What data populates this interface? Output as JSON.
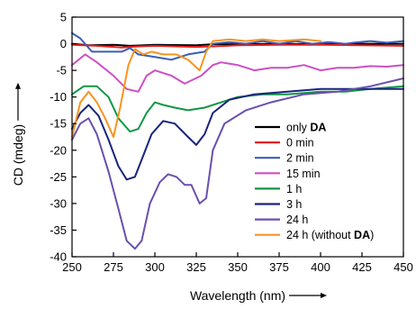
{
  "chart_data": {
    "type": "line",
    "title": "",
    "xlabel": "Wavelength (nm)",
    "ylabel": "CD (mdeg)",
    "xlim": [
      250,
      450
    ],
    "ylim": [
      -40,
      5
    ],
    "grid": false,
    "legend_position": "bottom-right",
    "x_ticks": [
      250,
      275,
      300,
      325,
      350,
      375,
      400,
      425,
      450
    ],
    "y_ticks": [
      5,
      0,
      -5,
      -10,
      -15,
      -20,
      -25,
      -30,
      -35,
      -40
    ],
    "series": [
      {
        "name": "only DA",
        "label_plain": "only ",
        "label_bold": "DA",
        "color": "#000000",
        "points": [
          [
            250,
            0
          ],
          [
            260,
            -0.3
          ],
          [
            275,
            -0.2
          ],
          [
            285,
            -0.4
          ],
          [
            300,
            -0.2
          ],
          [
            325,
            -0.3
          ],
          [
            335,
            -0.1
          ],
          [
            350,
            -0.1
          ],
          [
            375,
            0
          ],
          [
            400,
            -0.1
          ],
          [
            425,
            0
          ],
          [
            450,
            0
          ]
        ]
      },
      {
        "name": "0 min",
        "label_plain": "0 min",
        "label_bold": "",
        "color": "#e8211f",
        "points": [
          [
            250,
            -0.2
          ],
          [
            265,
            -0.4
          ],
          [
            280,
            -0.7
          ],
          [
            290,
            -0.5
          ],
          [
            300,
            -0.4
          ],
          [
            325,
            -0.6
          ],
          [
            335,
            -0.5
          ],
          [
            350,
            -0.3
          ],
          [
            375,
            -0.2
          ],
          [
            400,
            -0.2
          ],
          [
            425,
            -0.3
          ],
          [
            450,
            -0.4
          ]
        ]
      },
      {
        "name": "2 min",
        "label_plain": "2 min",
        "label_bold": "",
        "color": "#3a5cb8",
        "points": [
          [
            250,
            2
          ],
          [
            255,
            1
          ],
          [
            262,
            -1.5
          ],
          [
            270,
            -1.5
          ],
          [
            280,
            -1.5
          ],
          [
            285,
            -0.8
          ],
          [
            290,
            -2
          ],
          [
            300,
            -2.5
          ],
          [
            310,
            -3
          ],
          [
            320,
            -2
          ],
          [
            330,
            -1.5
          ],
          [
            335,
            0
          ],
          [
            345,
            0.3
          ],
          [
            355,
            0
          ],
          [
            365,
            0.5
          ],
          [
            375,
            0
          ],
          [
            385,
            0.5
          ],
          [
            395,
            0
          ],
          [
            405,
            0.3
          ],
          [
            415,
            0
          ],
          [
            420,
            0.2
          ],
          [
            430,
            0.5
          ],
          [
            440,
            0.2
          ],
          [
            450,
            0.5
          ]
        ]
      },
      {
        "name": "15 min",
        "label_plain": "15 min",
        "label_bold": "",
        "color": "#cc4fc4",
        "points": [
          [
            250,
            -4
          ],
          [
            258,
            -2
          ],
          [
            265,
            -3.5
          ],
          [
            275,
            -6
          ],
          [
            283,
            -8.5
          ],
          [
            290,
            -9
          ],
          [
            295,
            -6
          ],
          [
            300,
            -5
          ],
          [
            305,
            -5.5
          ],
          [
            310,
            -6
          ],
          [
            318,
            -7.5
          ],
          [
            328,
            -6
          ],
          [
            335,
            -4
          ],
          [
            340,
            -3.5
          ],
          [
            350,
            -4
          ],
          [
            360,
            -5
          ],
          [
            370,
            -4.5
          ],
          [
            380,
            -4.5
          ],
          [
            390,
            -4
          ],
          [
            400,
            -5
          ],
          [
            410,
            -4.5
          ],
          [
            420,
            -4.5
          ],
          [
            430,
            -4.2
          ],
          [
            440,
            -4.3
          ],
          [
            450,
            -4
          ]
        ]
      },
      {
        "name": "1 h",
        "label_plain": "1 h",
        "label_bold": "",
        "color": "#129645",
        "points": [
          [
            250,
            -9.5
          ],
          [
            257,
            -8
          ],
          [
            265,
            -8
          ],
          [
            272,
            -10
          ],
          [
            278,
            -14
          ],
          [
            285,
            -16.5
          ],
          [
            290,
            -16
          ],
          [
            295,
            -13
          ],
          [
            300,
            -11
          ],
          [
            305,
            -11.5
          ],
          [
            312,
            -12
          ],
          [
            320,
            -12.5
          ],
          [
            330,
            -12
          ],
          [
            340,
            -11
          ],
          [
            350,
            -10
          ],
          [
            365,
            -9.5
          ],
          [
            380,
            -9.5
          ],
          [
            400,
            -9
          ],
          [
            415,
            -9
          ],
          [
            430,
            -8.5
          ],
          [
            450,
            -8
          ]
        ]
      },
      {
        "name": "3 h",
        "label_plain": "3 h",
        "label_bold": "",
        "color": "#1a237e",
        "points": [
          [
            250,
            -16
          ],
          [
            255,
            -13
          ],
          [
            260,
            -11.5
          ],
          [
            266,
            -13.5
          ],
          [
            272,
            -18
          ],
          [
            278,
            -23
          ],
          [
            283,
            -25.5
          ],
          [
            288,
            -25
          ],
          [
            293,
            -21
          ],
          [
            298,
            -17
          ],
          [
            305,
            -14.5
          ],
          [
            312,
            -15
          ],
          [
            320,
            -17.5
          ],
          [
            325,
            -19
          ],
          [
            330,
            -17
          ],
          [
            335,
            -13
          ],
          [
            345,
            -10.5
          ],
          [
            360,
            -9.5
          ],
          [
            380,
            -9
          ],
          [
            400,
            -8.5
          ],
          [
            425,
            -8.5
          ],
          [
            450,
            -8.5
          ]
        ]
      },
      {
        "name": "24 h",
        "label_plain": "24 h",
        "label_bold": "",
        "color": "#6a4fb0",
        "points": [
          [
            250,
            -18
          ],
          [
            255,
            -15
          ],
          [
            260,
            -14
          ],
          [
            265,
            -17
          ],
          [
            272,
            -24
          ],
          [
            278,
            -31
          ],
          [
            283,
            -37
          ],
          [
            288,
            -38.5
          ],
          [
            292,
            -37
          ],
          [
            297,
            -30
          ],
          [
            303,
            -26
          ],
          [
            308,
            -24.5
          ],
          [
            313,
            -25
          ],
          [
            318,
            -26.5
          ],
          [
            322,
            -26.5
          ],
          [
            327,
            -30
          ],
          [
            331,
            -29
          ],
          [
            335,
            -20
          ],
          [
            342,
            -15
          ],
          [
            355,
            -12.5
          ],
          [
            370,
            -11
          ],
          [
            390,
            -9.5
          ],
          [
            410,
            -9
          ],
          [
            430,
            -8
          ],
          [
            450,
            -6.5
          ]
        ]
      },
      {
        "name": "24 h (without DA)",
        "label_plain": "24 h (without ",
        "label_bold": "DA",
        "label_suffix": ")",
        "color": "#f7941d",
        "points": [
          [
            250,
            -17.5
          ],
          [
            255,
            -11
          ],
          [
            260,
            -9
          ],
          [
            265,
            -11
          ],
          [
            270,
            -14
          ],
          [
            275,
            -17.5
          ],
          [
            279,
            -12
          ],
          [
            284,
            -4
          ],
          [
            288,
            -1
          ],
          [
            293,
            -2
          ],
          [
            298,
            -1.5
          ],
          [
            305,
            -2
          ],
          [
            313,
            -2
          ],
          [
            320,
            -3
          ],
          [
            327,
            -5
          ],
          [
            331,
            -1.5
          ],
          [
            335,
            0.5
          ],
          [
            345,
            0.8
          ],
          [
            355,
            0.5
          ],
          [
            365,
            0.8
          ],
          [
            375,
            0.5
          ],
          [
            390,
            0.8
          ],
          [
            400,
            0.5
          ]
        ]
      }
    ]
  }
}
